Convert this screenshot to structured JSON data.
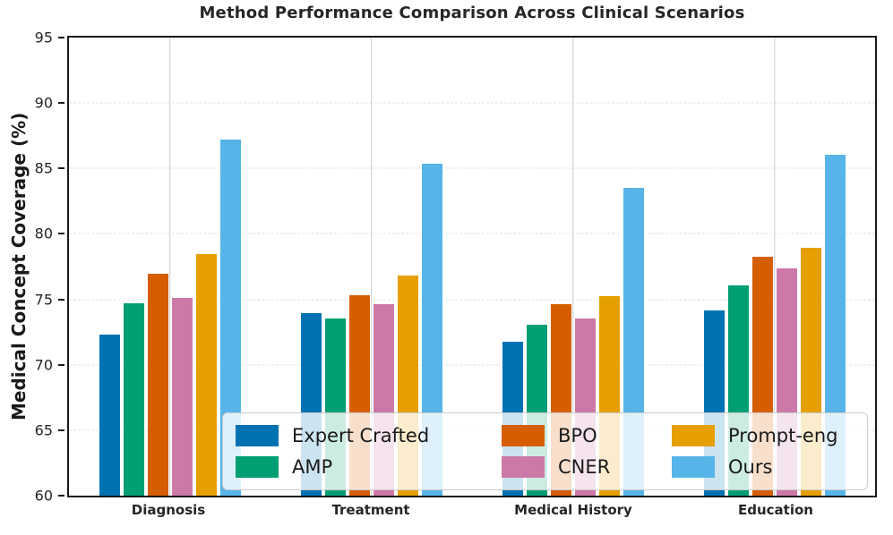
{
  "chart_data": {
    "type": "bar",
    "title": "Method Performance Comparison Across Clinical Scenarios",
    "xlabel": "",
    "ylabel": "Medical Concept Coverage (%)",
    "categories": [
      "Diagnosis",
      "Treatment",
      "Medical History",
      "Education"
    ],
    "series": [
      {
        "name": "Expert Crafted",
        "color": "#0072B2",
        "values": [
          72.4,
          74.0,
          71.8,
          74.2
        ]
      },
      {
        "name": "AMP",
        "color": "#009E73",
        "values": [
          74.8,
          73.6,
          73.1,
          76.1
        ]
      },
      {
        "name": "BPO",
        "color": "#D55E00",
        "values": [
          77.0,
          75.4,
          74.7,
          78.3
        ]
      },
      {
        "name": "CNER",
        "color": "#CC79A7",
        "values": [
          75.2,
          74.7,
          73.6,
          77.4
        ]
      },
      {
        "name": "Prompt-eng",
        "color": "#E69F00",
        "values": [
          78.5,
          76.9,
          75.3,
          79.0
        ]
      },
      {
        "name": "Ours",
        "color": "#56B4E9",
        "values": [
          87.3,
          85.4,
          83.6,
          86.1
        ]
      }
    ],
    "ylim": [
      60,
      95
    ],
    "yticks": [
      60,
      65,
      70,
      75,
      80,
      85,
      90,
      95
    ],
    "grid": {
      "horizontal": "dashed",
      "vertical": "solid-at-group-centers"
    },
    "legend": {
      "position": "inside lower right",
      "columns": 3,
      "rows": 2
    }
  }
}
